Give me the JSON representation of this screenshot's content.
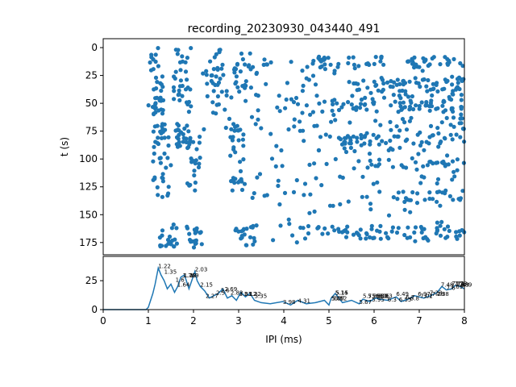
{
  "chart_data": [
    {
      "type": "scatter",
      "title": "recording_20230930_043440_491",
      "xlabel": "",
      "ylabel": "t (s)",
      "xlim": [
        0,
        8
      ],
      "ylim": [
        180,
        0
      ],
      "y_inverted": true,
      "yticks": [
        0,
        25,
        50,
        75,
        100,
        125,
        150,
        175
      ],
      "color": "#1f77b4",
      "clusters": [
        {
          "x": [
            1.0,
            1.35
          ],
          "y": [
            0,
            40
          ]
        },
        {
          "x": [
            1.0,
            1.35
          ],
          "y": [
            45,
            60
          ]
        },
        {
          "x": [
            1.55,
            1.95
          ],
          "y": [
            0,
            60
          ]
        },
        {
          "x": [
            2.35,
            2.6
          ],
          "y": [
            0,
            55
          ]
        },
        {
          "x": [
            2.9,
            3.3
          ],
          "y": [
            5,
            40
          ]
        },
        {
          "x": [
            3.3,
            8.0
          ],
          "y": [
            8,
            18
          ]
        },
        {
          "x": [
            5.5,
            8.0
          ],
          "y": [
            28,
            58
          ]
        },
        {
          "x": [
            1.1,
            1.45
          ],
          "y": [
            68,
            90
          ]
        },
        {
          "x": [
            1.6,
            1.85
          ],
          "y": [
            68,
            90
          ]
        },
        {
          "x": [
            1.1,
            1.5
          ],
          "y": [
            95,
            135
          ]
        },
        {
          "x": [
            1.85,
            2.15
          ],
          "y": [
            70,
            135
          ]
        },
        {
          "x": [
            2.8,
            3.15
          ],
          "y": [
            70,
            130
          ]
        },
        {
          "x": [
            5.8,
            8.0
          ],
          "y": [
            100,
            108
          ]
        },
        {
          "x": [
            4.8,
            8.0
          ],
          "y": [
            78,
            88
          ]
        },
        {
          "x": [
            6.5,
            8.0
          ],
          "y": [
            128,
            140
          ]
        },
        {
          "x": [
            1.25,
            1.65
          ],
          "y": [
            158,
            180
          ]
        },
        {
          "x": [
            1.8,
            2.2
          ],
          "y": [
            160,
            180
          ]
        },
        {
          "x": [
            2.9,
            3.4
          ],
          "y": [
            160,
            178
          ]
        },
        {
          "x": [
            4.0,
            8.0
          ],
          "y": [
            160,
            172
          ]
        },
        {
          "x": [
            3.3,
            8.0
          ],
          "y": [
            60,
            175
          ]
        },
        {
          "x": [
            2.2,
            8.0
          ],
          "y": [
            15,
            75
          ]
        }
      ]
    },
    {
      "type": "line",
      "title": "",
      "xlabel": "IPI (ms)",
      "ylabel": "",
      "xlim": [
        0,
        8
      ],
      "ylim": [
        0,
        46
      ],
      "xticks": [
        0,
        1,
        2,
        3,
        4,
        5,
        6,
        7,
        8
      ],
      "yticks": [
        0,
        25
      ],
      "color": "#1f77b4",
      "x": [
        0,
        0.5,
        0.95,
        1.0,
        1.05,
        1.1,
        1.15,
        1.22,
        1.28,
        1.35,
        1.42,
        1.5,
        1.58,
        1.65,
        1.72,
        1.8,
        1.9,
        2.03,
        2.08,
        2.15,
        2.25,
        2.35,
        2.45,
        2.55,
        2.65,
        2.75,
        2.85,
        2.95,
        3.05,
        3.15,
        3.25,
        3.35,
        3.5,
        3.7,
        3.98,
        4.15,
        4.31,
        4.5,
        4.7,
        4.9,
        5.0,
        5.05,
        5.14,
        5.3,
        5.5,
        5.67,
        5.75,
        5.9,
        6.03,
        6.13,
        6.3,
        6.49,
        6.6,
        6.75,
        6.9,
        7.1,
        7.25,
        7.4,
        7.5,
        7.6,
        7.72,
        7.8,
        7.9,
        8.0
      ],
      "y": [
        0,
        0,
        0,
        2,
        8,
        14,
        22,
        36,
        30,
        25,
        18,
        22,
        15,
        20,
        28,
        30,
        18,
        33,
        25,
        20,
        16,
        10,
        12,
        14,
        18,
        10,
        12,
        8,
        15,
        11,
        14,
        8,
        6,
        5,
        7,
        4,
        8,
        5,
        6,
        8,
        4,
        10,
        14,
        6,
        8,
        5,
        9,
        7,
        10,
        9,
        8,
        11,
        7,
        9,
        12,
        10,
        12,
        15,
        20,
        17,
        18,
        21,
        20,
        18
      ],
      "annotations": [
        {
          "x": 1.22,
          "y": 36,
          "text": "1.22"
        },
        {
          "x": 1.35,
          "y": 31,
          "text": "1.35"
        },
        {
          "x": 1.6,
          "y": 24,
          "text": "1.6"
        },
        {
          "x": 1.64,
          "y": 20,
          "text": "1.64"
        },
        {
          "x": 1.76,
          "y": 28,
          "text": "1.76"
        },
        {
          "x": 1.78,
          "y": 28,
          "text": "1.78"
        },
        {
          "x": 1.92,
          "y": 28,
          "text": "1.9"
        },
        {
          "x": 2.03,
          "y": 33,
          "text": "2.03"
        },
        {
          "x": 2.15,
          "y": 20,
          "text": "2.15"
        },
        {
          "x": 2.27,
          "y": 10,
          "text": "2.27"
        },
        {
          "x": 2.5,
          "y": 13,
          "text": "2.5"
        },
        {
          "x": 2.6,
          "y": 15,
          "text": "2.6"
        },
        {
          "x": 2.69,
          "y": 16,
          "text": "2.69"
        },
        {
          "x": 2.82,
          "y": 13,
          "text": "2.82"
        },
        {
          "x": 3.01,
          "y": 12,
          "text": "3.01"
        },
        {
          "x": 3.12,
          "y": 12,
          "text": "3.12"
        },
        {
          "x": 3.22,
          "y": 12,
          "text": "3.22"
        },
        {
          "x": 3.35,
          "y": 10,
          "text": "3.35"
        },
        {
          "x": 3.98,
          "y": 5,
          "text": "3.98"
        },
        {
          "x": 4.31,
          "y": 6,
          "text": "4.31"
        },
        {
          "x": 5.05,
          "y": 8,
          "text": "5.05"
        },
        {
          "x": 5.07,
          "y": 8,
          "text": "5.07"
        },
        {
          "x": 5.12,
          "y": 8,
          "text": "5.12"
        },
        {
          "x": 5.14,
          "y": 13,
          "text": "5.14"
        },
        {
          "x": 5.15,
          "y": 13,
          "text": "5.15"
        },
        {
          "x": 5.67,
          "y": 5,
          "text": "5.67"
        },
        {
          "x": 5.75,
          "y": 10,
          "text": "5.75"
        },
        {
          "x": 5.86,
          "y": 10,
          "text": "5.86"
        },
        {
          "x": 5.95,
          "y": 7,
          "text": "5.95"
        },
        {
          "x": 6.03,
          "y": 10,
          "text": "6.03"
        },
        {
          "x": 6.06,
          "y": 10,
          "text": "6.06"
        },
        {
          "x": 6.1,
          "y": 10,
          "text": "6.1"
        },
        {
          "x": 6.13,
          "y": 10,
          "text": "6.13"
        },
        {
          "x": 6.3,
          "y": 7,
          "text": "6.3"
        },
        {
          "x": 6.49,
          "y": 12,
          "text": "6.49"
        },
        {
          "x": 6.55,
          "y": 7,
          "text": "6.55"
        },
        {
          "x": 6.7,
          "y": 9,
          "text": "6.7"
        },
        {
          "x": 6.8,
          "y": 8,
          "text": "6.8"
        },
        {
          "x": 6.97,
          "y": 12,
          "text": "6.97"
        },
        {
          "x": 7.02,
          "y": 10,
          "text": "7.02"
        },
        {
          "x": 7.1,
          "y": 10,
          "text": "7.1"
        },
        {
          "x": 7.23,
          "y": 13,
          "text": "7.23"
        },
        {
          "x": 7.28,
          "y": 12,
          "text": "7.28"
        },
        {
          "x": 7.38,
          "y": 12,
          "text": "7.38"
        },
        {
          "x": 7.48,
          "y": 20,
          "text": "7.48"
        },
        {
          "x": 7.6,
          "y": 17,
          "text": "7.6"
        },
        {
          "x": 7.69,
          "y": 18,
          "text": "7.69"
        },
        {
          "x": 7.72,
          "y": 21,
          "text": "7.72"
        },
        {
          "x": 7.78,
          "y": 21,
          "text": "7.78"
        },
        {
          "x": 7.8,
          "y": 20,
          "text": "7.8"
        },
        {
          "x": 7.83,
          "y": 20,
          "text": "7.83"
        },
        {
          "x": 7.89,
          "y": 20,
          "text": "7.89"
        }
      ]
    }
  ]
}
